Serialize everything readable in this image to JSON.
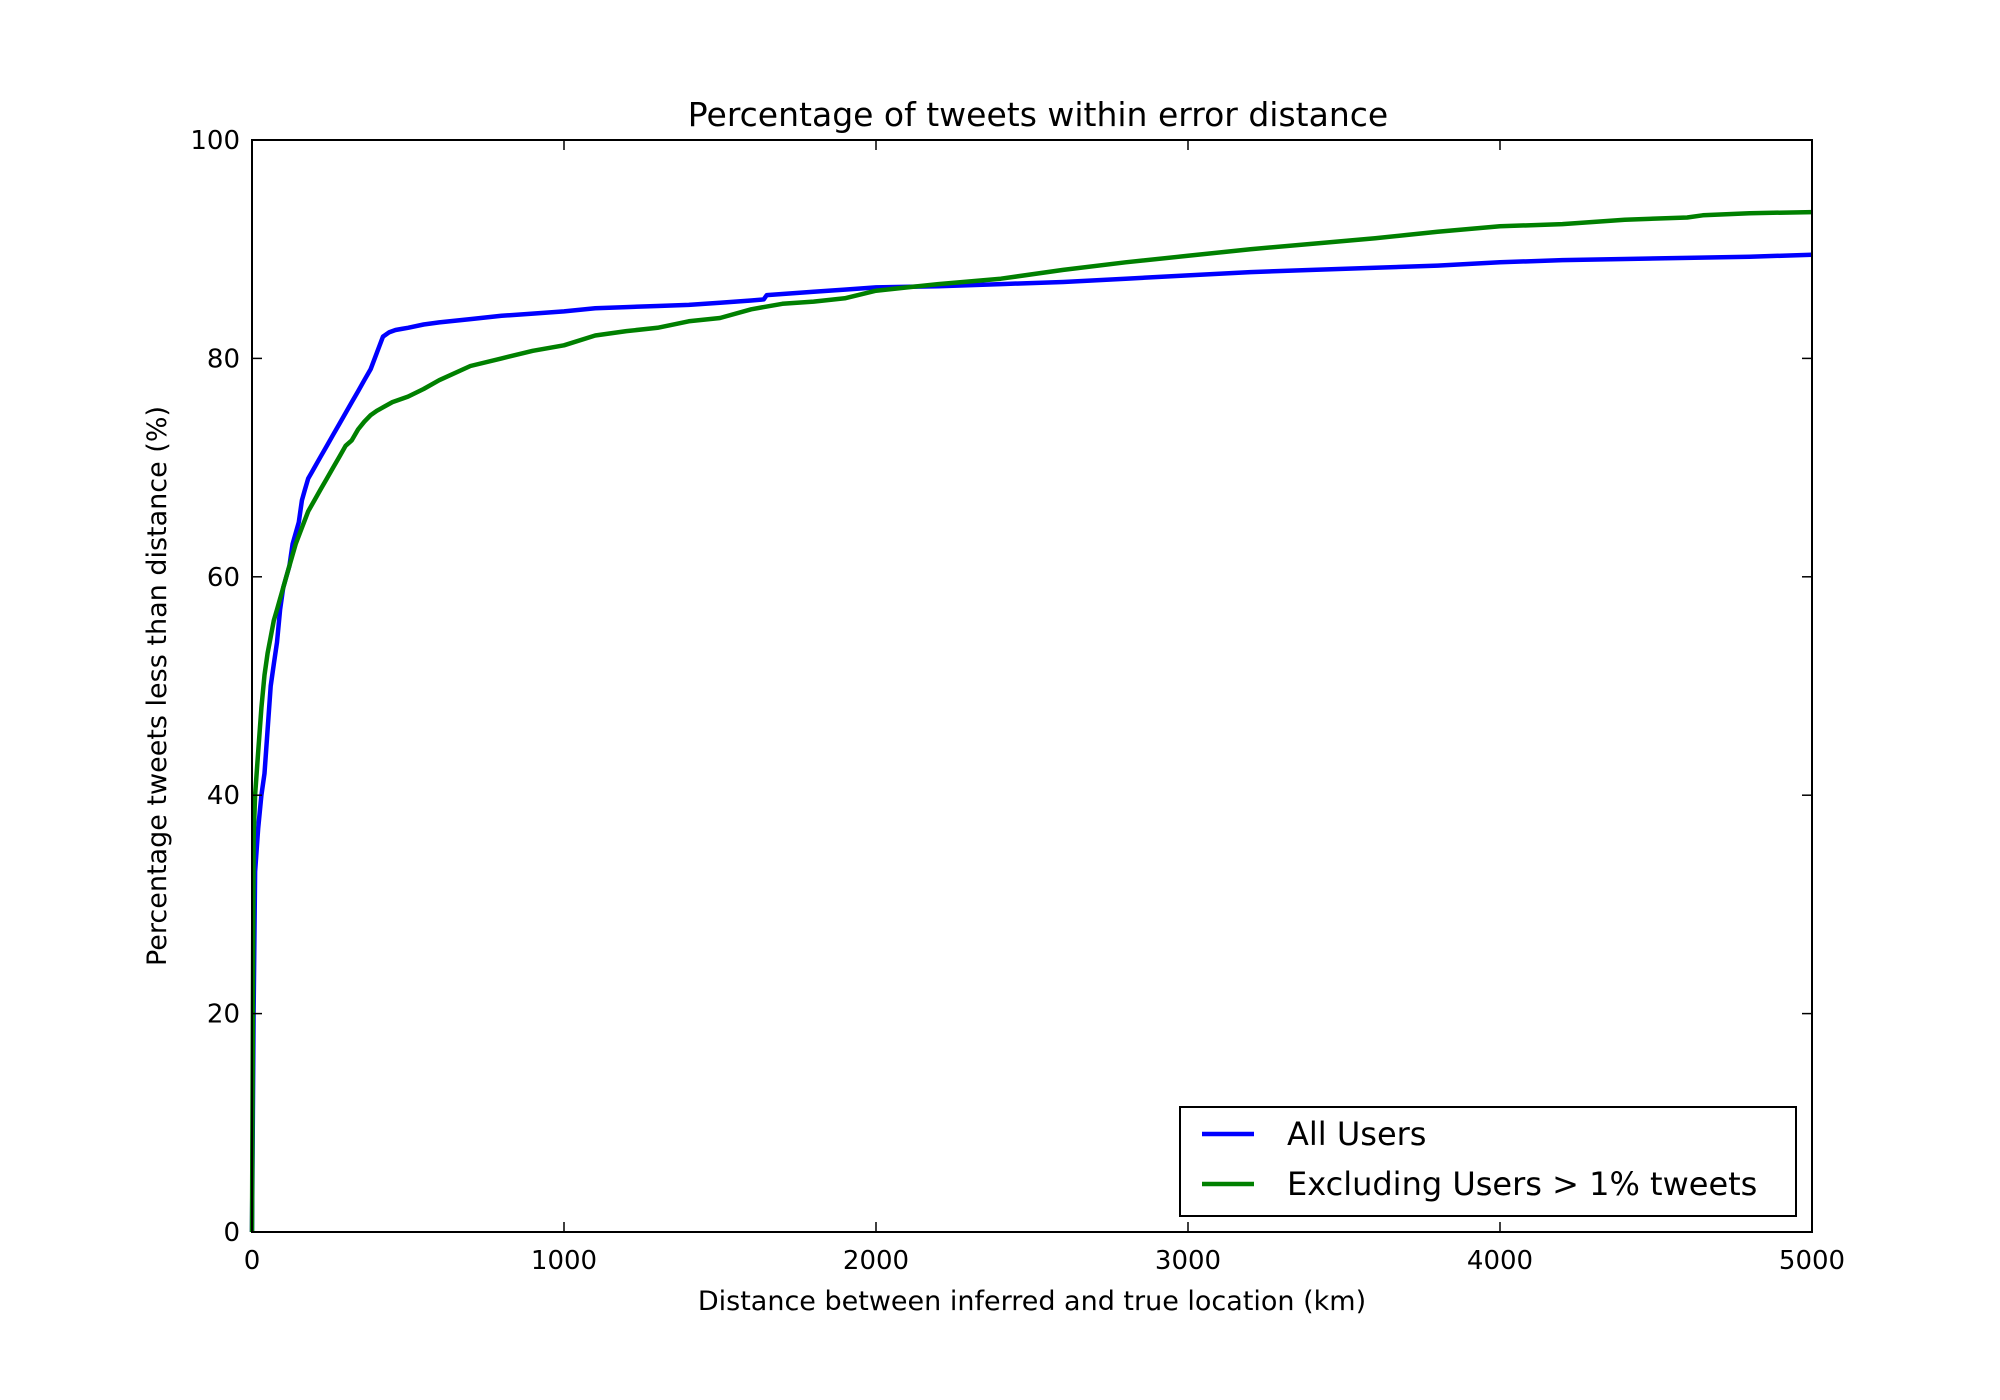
{
  "chart_data": {
    "type": "line",
    "title": "Percentage of tweets within error distance",
    "xlabel": "Distance between inferred and true location (km)",
    "ylabel": "Percentage tweets less than distance (%)",
    "xlim": [
      0,
      5000
    ],
    "ylim": [
      0,
      100
    ],
    "xticks": [
      0,
      1000,
      2000,
      3000,
      4000,
      5000
    ],
    "yticks": [
      0,
      20,
      40,
      60,
      80,
      100
    ],
    "xtick_labels": [
      "0",
      "1000",
      "2000",
      "3000",
      "4000",
      "5000"
    ],
    "ytick_labels": [
      "0",
      "20",
      "40",
      "60",
      "80",
      "100"
    ],
    "grid": false,
    "legend_position": "lower-right",
    "series": [
      {
        "name": "All Users",
        "color": "#0000ff",
        "x": [
          0,
          5,
          10,
          20,
          30,
          40,
          50,
          60,
          70,
          80,
          90,
          100,
          110,
          120,
          130,
          140,
          150,
          160,
          170,
          180,
          190,
          200,
          220,
          240,
          260,
          280,
          300,
          320,
          340,
          360,
          380,
          400,
          420,
          440,
          460,
          480,
          500,
          550,
          600,
          700,
          800,
          900,
          1000,
          1100,
          1200,
          1300,
          1400,
          1500,
          1600,
          1640,
          1650,
          1700,
          1800,
          1900,
          2000,
          2200,
          2400,
          2600,
          2800,
          3000,
          3200,
          3400,
          3600,
          3800,
          4000,
          4200,
          4400,
          4600,
          4800,
          5000
        ],
        "y": [
          0,
          20,
          33,
          37,
          40,
          42,
          46,
          50,
          52,
          54,
          57,
          59,
          60,
          61,
          63,
          64,
          65,
          67,
          68,
          69,
          69.5,
          70,
          71,
          72,
          73,
          74,
          75,
          76,
          77,
          78,
          79,
          80.5,
          82,
          82.4,
          82.6,
          82.7,
          82.8,
          83.1,
          83.3,
          83.6,
          83.9,
          84.1,
          84.3,
          84.6,
          84.7,
          84.8,
          84.9,
          85.1,
          85.3,
          85.4,
          85.8,
          85.9,
          86.1,
          86.3,
          86.5,
          86.6,
          86.8,
          87.0,
          87.3,
          87.6,
          87.9,
          88.1,
          88.3,
          88.5,
          88.8,
          89.0,
          89.1,
          89.2,
          89.3,
          89.5
        ]
      },
      {
        "name": "Excluding Users > 1% tweets",
        "color": "#008000",
        "x": [
          0,
          5,
          10,
          20,
          30,
          40,
          50,
          60,
          70,
          80,
          90,
          100,
          120,
          140,
          160,
          180,
          200,
          220,
          240,
          260,
          280,
          300,
          320,
          340,
          360,
          380,
          400,
          450,
          500,
          550,
          600,
          700,
          800,
          900,
          1000,
          1100,
          1200,
          1300,
          1400,
          1500,
          1600,
          1700,
          1800,
          1900,
          2000,
          2100,
          2200,
          2400,
          2600,
          2800,
          3000,
          3200,
          3400,
          3600,
          3700,
          3800,
          4000,
          4200,
          4400,
          4600,
          4650,
          4800,
          5000
        ],
        "y": [
          0,
          36,
          40,
          44,
          48,
          51,
          53,
          54.5,
          56,
          57,
          58,
          59,
          61,
          63,
          64.5,
          66,
          67,
          68,
          69,
          70,
          71,
          72,
          72.5,
          73.5,
          74.2,
          74.8,
          75.2,
          76,
          76.5,
          77.2,
          78,
          79.3,
          80,
          80.7,
          81.2,
          82.1,
          82.5,
          82.8,
          83.4,
          83.7,
          84.5,
          85,
          85.2,
          85.5,
          86.2,
          86.5,
          86.8,
          87.3,
          88.1,
          88.8,
          89.4,
          90.0,
          90.5,
          91.0,
          91.3,
          91.6,
          92.1,
          92.3,
          92.7,
          92.9,
          93.1,
          93.3,
          93.4
        ]
      }
    ]
  }
}
